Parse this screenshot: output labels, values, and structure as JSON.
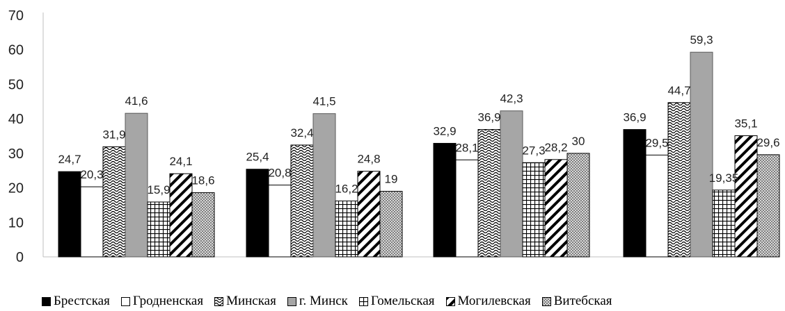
{
  "chart_data": {
    "type": "bar",
    "ylim": [
      0,
      70
    ],
    "yticks": [
      0,
      10,
      20,
      30,
      40,
      50,
      60,
      70
    ],
    "grid": false,
    "legend_position": "bottom",
    "series": [
      {
        "name": "Брестская",
        "values": [
          24.7,
          25.4,
          32.9,
          36.9
        ],
        "labels": [
          "24,7",
          "25,4",
          "32,9",
          "36,9"
        ],
        "pattern": "solid-black"
      },
      {
        "name": "Гродненская",
        "values": [
          20.3,
          20.8,
          28.1,
          29.5
        ],
        "labels": [
          "20,3",
          "20,8",
          "28,1",
          "29,5"
        ],
        "pattern": "white"
      },
      {
        "name": "Минская",
        "values": [
          31.9,
          32.4,
          36.9,
          44.7
        ],
        "labels": [
          "31,9",
          "32,4",
          "36,9",
          "44,7"
        ],
        "pattern": "wave"
      },
      {
        "name": "г. Минск",
        "values": [
          41.6,
          41.5,
          42.3,
          59.3
        ],
        "labels": [
          "41,6",
          "41,5",
          "42,3",
          "59,3"
        ],
        "pattern": "solid-gray"
      },
      {
        "name": "Гомельская",
        "values": [
          15.9,
          16.2,
          27.3,
          19.35
        ],
        "labels": [
          "15,9",
          "16,2",
          "27,3",
          "19,35"
        ],
        "pattern": "grid"
      },
      {
        "name": "Могилевская",
        "values": [
          24.1,
          24.8,
          28.2,
          35.1
        ],
        "labels": [
          "24,1",
          "24,8",
          "28,2",
          "35,1"
        ],
        "pattern": "diagonal"
      },
      {
        "name": "Витебская",
        "values": [
          18.6,
          19.0,
          30.0,
          29.6
        ],
        "labels": [
          "18,6",
          "19",
          "30",
          "29,6"
        ],
        "pattern": "dots"
      }
    ],
    "colors": {
      "black": "#000000",
      "gray": "#a6a6a6",
      "white": "#ffffff",
      "axis": "#bfbfbf"
    }
  }
}
